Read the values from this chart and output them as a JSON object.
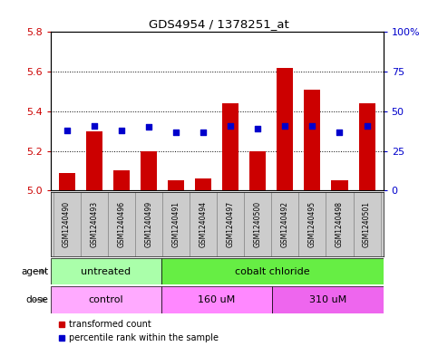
{
  "title": "GDS4954 / 1378251_at",
  "samples": [
    "GSM1240490",
    "GSM1240493",
    "GSM1240496",
    "GSM1240499",
    "GSM1240491",
    "GSM1240494",
    "GSM1240497",
    "GSM1240500",
    "GSM1240492",
    "GSM1240495",
    "GSM1240498",
    "GSM1240501"
  ],
  "red_values": [
    5.09,
    5.3,
    5.1,
    5.2,
    5.05,
    5.06,
    5.44,
    5.2,
    5.62,
    5.51,
    5.05,
    5.44
  ],
  "blue_pct": [
    38,
    41,
    38,
    40,
    37,
    37,
    41,
    39,
    41,
    41,
    37,
    41
  ],
  "ylim_left": [
    5.0,
    5.8
  ],
  "ylim_right": [
    0,
    100
  ],
  "yticks_left": [
    5.0,
    5.2,
    5.4,
    5.6,
    5.8
  ],
  "yticks_right": [
    0,
    25,
    50,
    75,
    100
  ],
  "yticklabels_right": [
    "0",
    "25",
    "50",
    "75",
    "100%"
  ],
  "bar_color": "#cc0000",
  "dot_color": "#0000cc",
  "bar_bottom": 5.0,
  "groups": [
    {
      "label": "untreated",
      "start": 0,
      "end": 4,
      "color": "#aaffaa"
    },
    {
      "label": "cobalt chloride",
      "start": 4,
      "end": 12,
      "color": "#66ee44"
    }
  ],
  "doses": [
    {
      "label": "control",
      "start": 0,
      "end": 4,
      "color": "#ffaaff"
    },
    {
      "label": "160 uM",
      "start": 4,
      "end": 8,
      "color": "#ff88ff"
    },
    {
      "label": "310 uM",
      "start": 8,
      "end": 12,
      "color": "#ee66ee"
    }
  ],
  "agent_label": "agent",
  "dose_label": "dose",
  "legend_red": "transformed count",
  "legend_blue": "percentile rank within the sample",
  "sample_bg": "#cccccc",
  "plot_bg": "#ffffff",
  "left_tick_color": "#cc0000",
  "right_tick_color": "#0000cc"
}
